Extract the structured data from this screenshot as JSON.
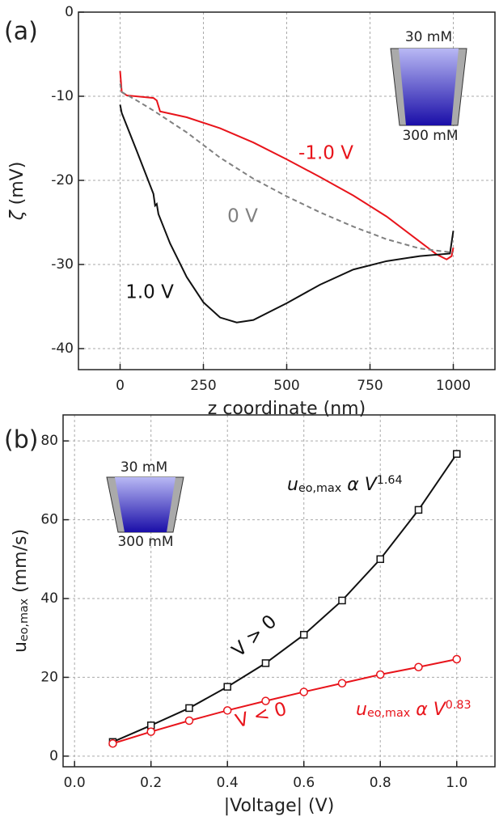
{
  "chart_data": [
    {
      "type": "line",
      "panel_label": "(a)",
      "x_label": "z coordinate (nm)",
      "y_label": [
        {
          "text": "ζ",
          "style": "italic"
        },
        {
          "text": " (mV)",
          "style": "normal"
        }
      ],
      "xlim": [
        -125,
        1125
      ],
      "ylim": [
        -42.5,
        0
      ],
      "xticks": [
        0,
        250,
        500,
        750,
        1000
      ],
      "yticks": [
        -40,
        -30,
        -20,
        -10,
        0
      ],
      "grid": true,
      "inset_labels": [
        "30 mM",
        "300 mM"
      ],
      "series": [
        {
          "name": "-1.0 V",
          "color": "#e8141b",
          "dash": false,
          "x": [
            0,
            5,
            20,
            100,
            110,
            120,
            200,
            300,
            400,
            500,
            600,
            700,
            800,
            900,
            950,
            980,
            995,
            1000
          ],
          "values": [
            -7,
            -9.5,
            -9.9,
            -10.2,
            -10.5,
            -11.8,
            -12.5,
            -13.8,
            -15.5,
            -17.5,
            -19.6,
            -21.8,
            -24.3,
            -27.3,
            -28.8,
            -29.4,
            -29,
            -28
          ]
        },
        {
          "name": "0 V",
          "color": "#808080",
          "dash": true,
          "x": [
            0,
            5,
            50,
            100,
            200,
            300,
            400,
            500,
            600,
            700,
            800,
            900,
            1000
          ],
          "values": [
            -8.5,
            -9.5,
            -10.5,
            -11.7,
            -14.3,
            -17.3,
            -19.8,
            -21.9,
            -23.8,
            -25.5,
            -27,
            -28.1,
            -28.6
          ]
        },
        {
          "name": "1.0 V",
          "color": "#111111",
          "dash": false,
          "x": [
            0,
            5,
            50,
            100,
            105,
            110,
            115,
            150,
            200,
            250,
            300,
            350,
            400,
            500,
            600,
            700,
            800,
            900,
            990,
            1000
          ],
          "values": [
            -11,
            -12,
            -16.5,
            -21.6,
            -23,
            -22.8,
            -24,
            -27.5,
            -31.5,
            -34.5,
            -36.3,
            -36.9,
            -36.6,
            -34.6,
            -32.4,
            -30.6,
            -29.6,
            -29,
            -28.7,
            -26
          ]
        }
      ]
    },
    {
      "type": "line",
      "panel_label": "(b)",
      "x_label": "|Voltage| (V)",
      "y_label": [
        {
          "text": "u",
          "style": "normal"
        },
        {
          "text": "eo,max",
          "style": "sub"
        },
        {
          "text": " (mm/s)",
          "style": "normal"
        }
      ],
      "xlim": [
        -0.03,
        1.1
      ],
      "ylim": [
        -2.7,
        86.6
      ],
      "xticks": [
        {
          "value": 0,
          "label": "0.0"
        },
        0.2,
        0.4,
        0.6,
        0.8,
        {
          "value": 1,
          "label": "1.0"
        }
      ],
      "yticks": [
        0,
        20,
        40,
        60,
        80
      ],
      "grid": true,
      "inset_labels": [
        "30 mM",
        "300 mM"
      ],
      "series": [
        {
          "name": "V > 0",
          "color": "#111111",
          "marker": "square",
          "x": [
            0.1,
            0.2,
            0.3,
            0.4,
            0.5,
            0.6,
            0.7,
            0.8,
            0.9,
            1
          ],
          "values": [
            3.6,
            7.8,
            12.2,
            17.6,
            23.6,
            30.8,
            39.5,
            50,
            62.5,
            76.7
          ],
          "annotation": [
            {
              "text": "u",
              "style": "italic"
            },
            {
              "text": "eo,max",
              "style": "sub"
            },
            {
              "text": " α ",
              "style": "italic"
            },
            {
              "text": "V",
              "style": "italic"
            },
            {
              "text": "1.64",
              "style": "sup"
            }
          ]
        },
        {
          "name": "V < 0",
          "color": "#e8141b",
          "marker": "circle",
          "x": [
            0.1,
            0.2,
            0.3,
            0.4,
            0.5,
            0.6,
            0.7,
            0.8,
            0.9,
            1
          ],
          "values": [
            3.2,
            6.2,
            9,
            11.6,
            14,
            16.3,
            18.5,
            20.7,
            22.6,
            24.6
          ],
          "annotation": [
            {
              "text": "u",
              "style": "italic"
            },
            {
              "text": "eo,max",
              "style": "sub"
            },
            {
              "text": " α ",
              "style": "italic"
            },
            {
              "text": "V",
              "style": "italic"
            },
            {
              "text": "0.83",
              "style": "sup"
            }
          ]
        }
      ]
    }
  ]
}
